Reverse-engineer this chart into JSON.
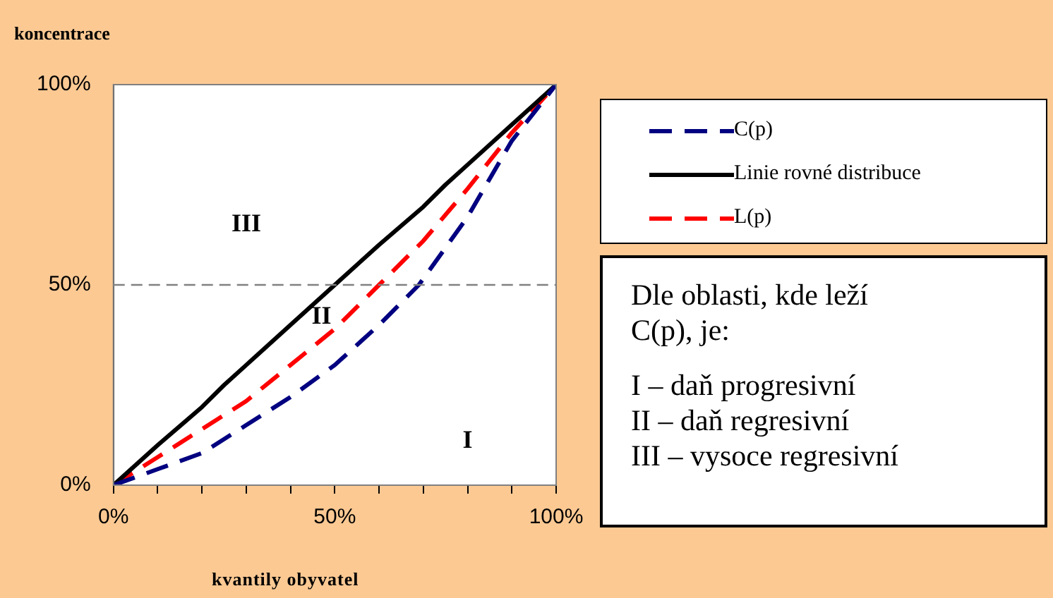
{
  "chart_data": {
    "type": "line",
    "xlabel": "kvantily obyvatel",
    "ylabel": "koncentrace",
    "xlim": [
      0,
      100
    ],
    "ylim": [
      0,
      100
    ],
    "xticks": [
      {
        "value": 0,
        "label": "0%"
      },
      {
        "value": 10,
        "label": null
      },
      {
        "value": 20,
        "label": null
      },
      {
        "value": 30,
        "label": null
      },
      {
        "value": 40,
        "label": null
      },
      {
        "value": 50,
        "label": "50%"
      },
      {
        "value": 60,
        "label": null
      },
      {
        "value": 70,
        "label": null
      },
      {
        "value": 80,
        "label": null
      },
      {
        "value": 90,
        "label": null
      },
      {
        "value": 100,
        "label": "100%"
      }
    ],
    "yticks": [
      {
        "value": 0,
        "label": "0%"
      },
      {
        "value": 50,
        "label": "50%"
      },
      {
        "value": 100,
        "label": "100%"
      }
    ],
    "grid": false,
    "legend": "right",
    "marker": "none",
    "series": [
      {
        "name": "C(p)",
        "color": "#000080",
        "line_style": "dashed",
        "x": [
          0,
          10,
          20,
          30,
          40,
          50,
          56,
          60,
          69,
          80,
          90,
          100
        ],
        "values": [
          0,
          4,
          8,
          15,
          22,
          30,
          36,
          40,
          50,
          67,
          86,
          100
        ]
      },
      {
        "name": "Linie rovné distribuce",
        "color": "#000000",
        "line_style": "solid",
        "x": [
          0,
          10,
          20,
          25,
          30,
          40,
          50,
          60,
          70,
          75,
          80,
          90,
          100
        ],
        "values": [
          0,
          10,
          19.5,
          25,
          30,
          40,
          50,
          60,
          69.5,
          75,
          80,
          90,
          100
        ]
      },
      {
        "name": "L(p)",
        "color": "#ff0000",
        "line_style": "dashed",
        "x": [
          0,
          10,
          20,
          30,
          40,
          50,
          60,
          70,
          80,
          90,
          100
        ],
        "values": [
          0,
          7,
          14,
          21,
          30,
          39,
          50,
          61,
          74,
          88,
          100
        ]
      }
    ],
    "ref_lines": [
      {
        "axis": "y",
        "value": 50,
        "color": "#808080",
        "line_style": "dashed"
      }
    ],
    "annotations": [
      "III",
      "II",
      "I",
      "Dle oblasti, kde leží C(p), je:",
      "I – daň progresivní",
      "II – daň regresivní",
      "III – vysoce regresivní"
    ]
  }
}
